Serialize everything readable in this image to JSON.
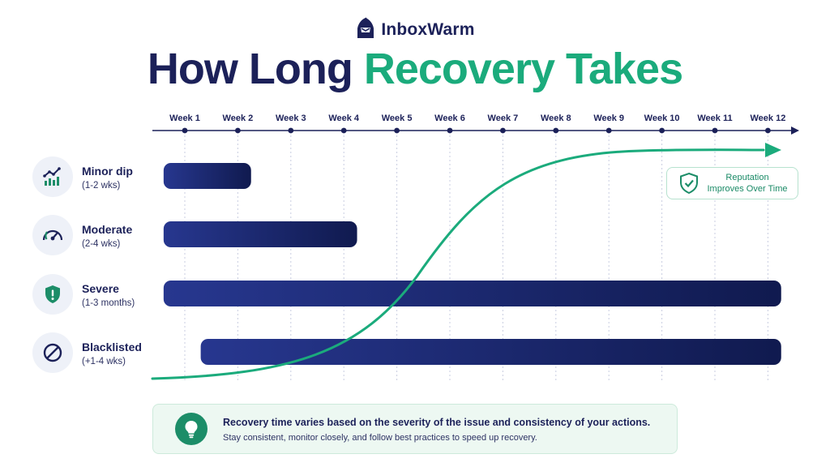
{
  "brand": {
    "name": "InboxWarm",
    "icon": "hooded-figure-logo"
  },
  "title": {
    "part1": "How Long",
    "part2": "Recovery Takes"
  },
  "colors": {
    "navy": "#1c2159",
    "green": "#1bab7c",
    "bar_start": "#27378f",
    "bar_end": "#101a4f"
  },
  "chart_data": {
    "type": "gantt",
    "x_axis": {
      "ticks": [
        "Week 1",
        "Week 2",
        "Week 3",
        "Week 4",
        "Week 5",
        "Week 6",
        "Week 7",
        "Week 8",
        "Week 9",
        "Week 10",
        "Week 11",
        "Week 12"
      ]
    },
    "rows": [
      {
        "name": "Minor dip",
        "range": "(1-2 wks)",
        "icon": "trending-up-chart-icon",
        "start_week": 0.6,
        "end_week": 2.25
      },
      {
        "name": "Moderate",
        "range": "(2-4 wks)",
        "icon": "speedometer-gauge-icon",
        "start_week": 0.6,
        "end_week": 4.25
      },
      {
        "name": "Severe",
        "range": "(1-3 months)",
        "icon": "shield-alert-icon",
        "start_week": 0.6,
        "end_week": 12.25
      },
      {
        "name": "Blacklisted",
        "range": "(+1-4 wks)",
        "icon": "blocked-circle-icon",
        "start_week": 1.3,
        "end_week": 12.25
      }
    ],
    "trend": {
      "label": "Reputation Improves Over Time",
      "icon": "shield-check-icon",
      "direction": "rising",
      "shape": "s-curve"
    }
  },
  "callout": {
    "line1": "Reputation",
    "line2": "Improves Over Time"
  },
  "footer": {
    "icon": "lightbulb-icon",
    "line1": "Recovery time varies based on the severity of the issue and consistency of your actions.",
    "line2": "Stay consistent, monitor closely, and follow best practices to speed up recovery."
  }
}
